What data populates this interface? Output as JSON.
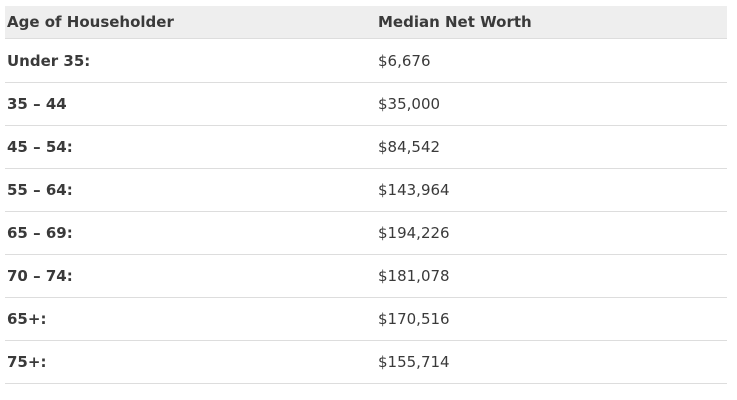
{
  "table": {
    "headers": {
      "age": "Age of Householder",
      "worth": "Median Net Worth"
    },
    "rows": [
      {
        "age": "Under 35:",
        "worth": "$6,676"
      },
      {
        "age": "35 – 44",
        "worth": "$35,000"
      },
      {
        "age": "45 – 54:",
        "worth": "$84,542"
      },
      {
        "age": "55 – 64:",
        "worth": "$143,964"
      },
      {
        "age": "65 – 69:",
        "worth": "$194,226"
      },
      {
        "age": "70 – 74:",
        "worth": "$181,078"
      },
      {
        "age": "65+:",
        "worth": "$170,516"
      },
      {
        "age": "75+:",
        "worth": "$155,714"
      }
    ]
  }
}
